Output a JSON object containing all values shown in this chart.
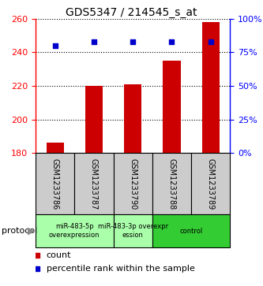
{
  "title": "GDS5347 / 214545_s_at",
  "samples": [
    "GSM1233786",
    "GSM1233787",
    "GSM1233790",
    "GSM1233788",
    "GSM1233789"
  ],
  "counts": [
    186,
    220,
    221,
    235,
    258
  ],
  "percentiles": [
    80,
    83,
    83,
    83,
    83
  ],
  "ylim_left": [
    180,
    260
  ],
  "ylim_right": [
    0,
    100
  ],
  "yticks_left": [
    180,
    200,
    220,
    240,
    260
  ],
  "yticks_right": [
    0,
    25,
    50,
    75,
    100
  ],
  "bar_color": "#cc0000",
  "dot_color": "#0000cc",
  "bar_width": 0.45,
  "protocol_groups": [
    {
      "label": "miR-483-5p\noverexpression",
      "samples": [
        0,
        1
      ],
      "color": "#aaffaa"
    },
    {
      "label": "miR-483-3p overexpr\nession",
      "samples": [
        2
      ],
      "color": "#aaffaa"
    },
    {
      "label": "control",
      "samples": [
        3,
        4
      ],
      "color": "#33cc33"
    }
  ],
  "legend_count_label": "count",
  "legend_percentile_label": "percentile rank within the sample",
  "protocol_label": "protocol",
  "sample_box_color": "#cccccc",
  "title_fontsize": 10,
  "tick_fontsize": 8,
  "label_fontsize": 7,
  "legend_fontsize": 8,
  "protocol_fontsize": 8
}
